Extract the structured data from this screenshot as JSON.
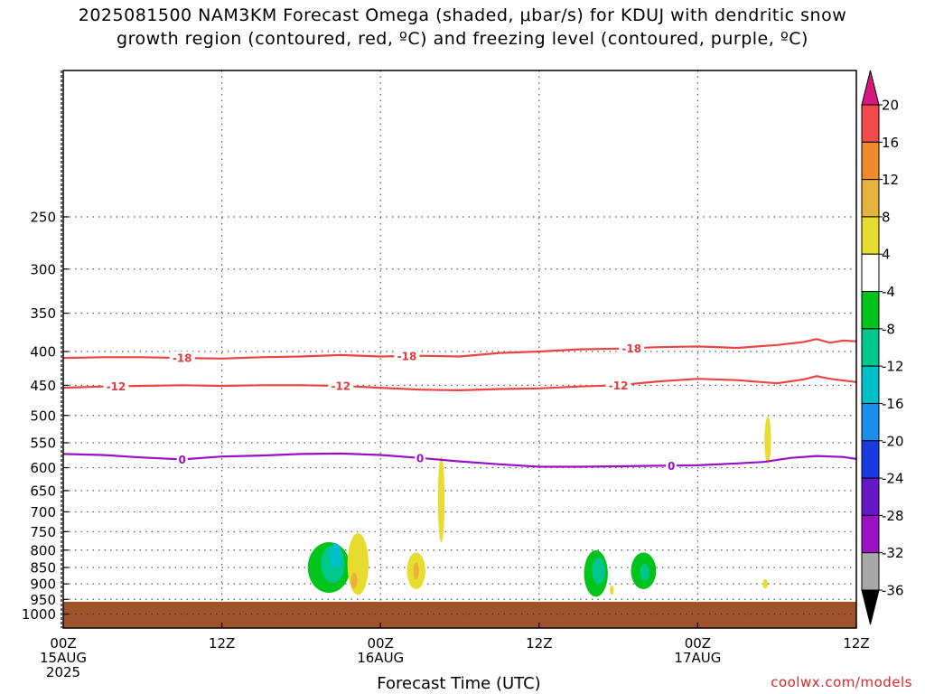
{
  "title_line1": "2025081500 NAM3KM Forecast Omega (shaded, μbar/s) for KDUJ with dendritic snow",
  "title_line2": "growth region (contoured, red, ºC) and freezing level (contoured, purple, ºC)",
  "credit": "coolwx.com/models",
  "chart_data": {
    "type": "heatmap",
    "xlabel": "Forecast Time (UTC)",
    "ylabel": "",
    "x_ticks": [
      {
        "hour": 0,
        "lines": [
          "00Z",
          "15AUG",
          "2025"
        ]
      },
      {
        "hour": 12,
        "lines": [
          "12Z"
        ]
      },
      {
        "hour": 24,
        "lines": [
          "00Z",
          "16AUG"
        ]
      },
      {
        "hour": 36,
        "lines": [
          "12Z"
        ]
      },
      {
        "hour": 48,
        "lines": [
          "00Z",
          "17AUG"
        ]
      },
      {
        "hour": 60,
        "lines": [
          "12Z"
        ]
      }
    ],
    "xlim": [
      0,
      60
    ],
    "y_ticks": [
      250,
      300,
      350,
      400,
      450,
      500,
      550,
      600,
      650,
      700,
      750,
      800,
      850,
      900,
      950,
      1000
    ],
    "ylim_top_hpa": 150,
    "ylim_bottom_hpa": 1050,
    "grid": true,
    "colorbar": {
      "labels": [
        "20",
        "16",
        "12",
        "8",
        "4",
        "-4",
        "-8",
        "-12",
        "-16",
        "-20",
        "-24",
        "-28",
        "-32",
        "-36"
      ],
      "colors": [
        "#d6177d",
        "#f24b4b",
        "#f08a2c",
        "#e8b33c",
        "#e8dc30",
        "#ffffff",
        "#00c41c",
        "#00c88c",
        "#00bfc8",
        "#1b8ff0",
        "#1a3ae0",
        "#6418c8",
        "#9c10c8",
        "#a8a8a8",
        "#000000"
      ]
    },
    "ground": {
      "color": "#a0522d",
      "pressure_hpa": 958
    },
    "contours": [
      {
        "label": "-18",
        "color": "#e94545",
        "label_color": "red",
        "points": [
          [
            0,
            409
          ],
          [
            3,
            408
          ],
          [
            6,
            408
          ],
          [
            9,
            409
          ],
          [
            12,
            410
          ],
          [
            15,
            408
          ],
          [
            18,
            407
          ],
          [
            21,
            405
          ],
          [
            24,
            407
          ],
          [
            27,
            406
          ],
          [
            30,
            407
          ],
          [
            33,
            402
          ],
          [
            36,
            400
          ],
          [
            39,
            397
          ],
          [
            42,
            396
          ],
          [
            45,
            394
          ],
          [
            48,
            393
          ],
          [
            51,
            395
          ],
          [
            54,
            391
          ],
          [
            56,
            387
          ],
          [
            57,
            383
          ],
          [
            58,
            388
          ],
          [
            59,
            385
          ],
          [
            60,
            386
          ]
        ],
        "labels_at": [
          9,
          26,
          43
        ]
      },
      {
        "label": "-12",
        "color": "#e94545",
        "label_color": "red",
        "points": [
          [
            0,
            454
          ],
          [
            3,
            452
          ],
          [
            6,
            451
          ],
          [
            9,
            450
          ],
          [
            12,
            451
          ],
          [
            15,
            450
          ],
          [
            18,
            450
          ],
          [
            21,
            451
          ],
          [
            24,
            454
          ],
          [
            27,
            457
          ],
          [
            30,
            458
          ],
          [
            33,
            456
          ],
          [
            36,
            455
          ],
          [
            39,
            452
          ],
          [
            42,
            450
          ],
          [
            45,
            444
          ],
          [
            48,
            440
          ],
          [
            51,
            442
          ],
          [
            54,
            447
          ],
          [
            56,
            441
          ],
          [
            57,
            436
          ],
          [
            58,
            440
          ],
          [
            60,
            445
          ]
        ],
        "labels_at": [
          4,
          21,
          42
        ]
      },
      {
        "label": "0",
        "color": "#9a10c4",
        "label_color": "purple",
        "points": [
          [
            0,
            572
          ],
          [
            3,
            574
          ],
          [
            6,
            579
          ],
          [
            9,
            583
          ],
          [
            12,
            577
          ],
          [
            15,
            575
          ],
          [
            18,
            572
          ],
          [
            21,
            571
          ],
          [
            24,
            574
          ],
          [
            27,
            580
          ],
          [
            30,
            587
          ],
          [
            33,
            593
          ],
          [
            36,
            598
          ],
          [
            39,
            598
          ],
          [
            42,
            597
          ],
          [
            45,
            596
          ],
          [
            48,
            595
          ],
          [
            51,
            591
          ],
          [
            53,
            588
          ],
          [
            55,
            580
          ],
          [
            57,
            576
          ],
          [
            59,
            578
          ],
          [
            60,
            582
          ]
        ],
        "labels_at": [
          9,
          27,
          46
        ]
      }
    ],
    "shaded_regions": [
      {
        "value": -8,
        "color": "#00c41c",
        "center": [
          20.1,
          850
        ],
        "radius": [
          1.6,
          75
        ]
      },
      {
        "value": -12,
        "color": "#00c88c",
        "center": [
          20.4,
          840
        ],
        "radius": [
          0.9,
          55
        ]
      },
      {
        "value": -16,
        "color": "#00bfc8",
        "center": [
          20.6,
          815
        ],
        "radius": [
          0.45,
          35
        ]
      },
      {
        "value": 4,
        "color": "#e8dc30",
        "center": [
          22.3,
          840
        ],
        "radius": [
          0.8,
          90
        ]
      },
      {
        "value": 8,
        "color": "#e8b33c",
        "center": [
          22.0,
          890
        ],
        "radius": [
          0.25,
          25
        ]
      },
      {
        "value": 4,
        "color": "#e8dc30",
        "center": [
          26.7,
          860
        ],
        "radius": [
          0.7,
          55
        ]
      },
      {
        "value": 8,
        "color": "#e8b33c",
        "center": [
          26.7,
          860
        ],
        "radius": [
          0.22,
          25
        ]
      },
      {
        "value": 4,
        "color": "#e8dc30",
        "center": [
          28.6,
          670
        ],
        "radius": [
          0.25,
          100
        ]
      },
      {
        "value": -8,
        "color": "#00c41c",
        "center": [
          40.3,
          868
        ],
        "radius": [
          0.9,
          70
        ]
      },
      {
        "value": -12,
        "color": "#00c88c",
        "center": [
          40.5,
          860
        ],
        "radius": [
          0.5,
          40
        ]
      },
      {
        "value": 4,
        "color": "#e8dc30",
        "center": [
          41.5,
          920
        ],
        "radius": [
          0.15,
          15
        ]
      },
      {
        "value": -8,
        "color": "#00c41c",
        "center": [
          43.9,
          860
        ],
        "radius": [
          0.95,
          55
        ]
      },
      {
        "value": -12,
        "color": "#00c88c",
        "center": [
          44.0,
          865
        ],
        "radius": [
          0.35,
          25
        ]
      },
      {
        "value": 4,
        "color": "#e8dc30",
        "center": [
          53.3,
          545
        ],
        "radius": [
          0.25,
          45
        ]
      },
      {
        "value": 4,
        "color": "#e8dc30",
        "center": [
          53.1,
          900
        ],
        "radius": [
          0.2,
          15
        ]
      }
    ]
  }
}
